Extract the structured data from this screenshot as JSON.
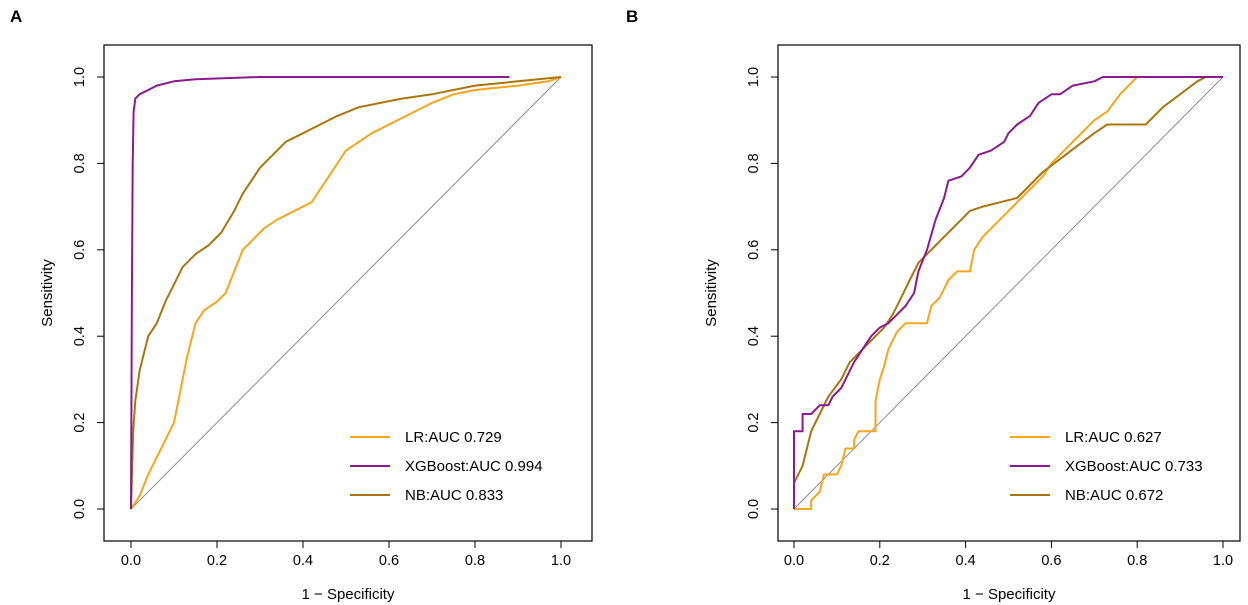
{
  "colors": {
    "LR": "#f7a51b",
    "XGBoost": "#8b1a8e",
    "NB": "#a8760d",
    "diagonal": "#8c8c8c"
  },
  "chart_data": [
    {
      "panel": "A",
      "type": "line",
      "title": "",
      "xlabel": "1 − Specificity",
      "ylabel": "Sensitivity",
      "xlim": [
        0,
        1
      ],
      "ylim": [
        0,
        1
      ],
      "x_ticks": [
        "0.0",
        "0.2",
        "0.4",
        "0.6",
        "0.8",
        "1.0"
      ],
      "y_ticks": [
        "0.0",
        "0.2",
        "0.4",
        "0.6",
        "0.8",
        "1.0"
      ],
      "grid": false,
      "legend_position": "bottom-right",
      "reference_line": [
        [
          0,
          0
        ],
        [
          1,
          1
        ]
      ],
      "series": [
        {
          "name": "LR",
          "legend": "LR:AUC 0.729",
          "color_key": "LR",
          "points": [
            [
              0,
              0
            ],
            [
              0.02,
              0.03
            ],
            [
              0.04,
              0.08
            ],
            [
              0.06,
              0.12
            ],
            [
              0.08,
              0.16
            ],
            [
              0.1,
              0.2
            ],
            [
              0.12,
              0.3
            ],
            [
              0.13,
              0.35
            ],
            [
              0.15,
              0.43
            ],
            [
              0.17,
              0.46
            ],
            [
              0.2,
              0.48
            ],
            [
              0.22,
              0.5
            ],
            [
              0.24,
              0.55
            ],
            [
              0.26,
              0.6
            ],
            [
              0.28,
              0.62
            ],
            [
              0.31,
              0.65
            ],
            [
              0.34,
              0.67
            ],
            [
              0.38,
              0.69
            ],
            [
              0.42,
              0.71
            ],
            [
              0.44,
              0.74
            ],
            [
              0.46,
              0.77
            ],
            [
              0.48,
              0.8
            ],
            [
              0.5,
              0.83
            ],
            [
              0.53,
              0.85
            ],
            [
              0.56,
              0.87
            ],
            [
              0.6,
              0.89
            ],
            [
              0.64,
              0.91
            ],
            [
              0.7,
              0.94
            ],
            [
              0.75,
              0.96
            ],
            [
              0.8,
              0.97
            ],
            [
              0.9,
              0.98
            ],
            [
              0.97,
              0.99
            ],
            [
              1,
              1
            ]
          ]
        },
        {
          "name": "XGBoost",
          "legend": "XGBoost:AUC 0.994",
          "color_key": "XGBoost",
          "points": [
            [
              0,
              0
            ],
            [
              0.002,
              0.5
            ],
            [
              0.004,
              0.8
            ],
            [
              0.006,
              0.92
            ],
            [
              0.01,
              0.95
            ],
            [
              0.02,
              0.96
            ],
            [
              0.04,
              0.97
            ],
            [
              0.06,
              0.98
            ],
            [
              0.1,
              0.99
            ],
            [
              0.15,
              0.995
            ],
            [
              0.3,
              1
            ],
            [
              0.88,
              1
            ]
          ]
        },
        {
          "name": "NB",
          "legend": "NB:AUC 0.833",
          "color_key": "NB",
          "points": [
            [
              0,
              0
            ],
            [
              0.005,
              0.18
            ],
            [
              0.01,
              0.25
            ],
            [
              0.02,
              0.32
            ],
            [
              0.03,
              0.36
            ],
            [
              0.04,
              0.4
            ],
            [
              0.06,
              0.43
            ],
            [
              0.08,
              0.48
            ],
            [
              0.1,
              0.52
            ],
            [
              0.12,
              0.56
            ],
            [
              0.15,
              0.59
            ],
            [
              0.18,
              0.61
            ],
            [
              0.21,
              0.64
            ],
            [
              0.24,
              0.69
            ],
            [
              0.26,
              0.73
            ],
            [
              0.28,
              0.76
            ],
            [
              0.3,
              0.79
            ],
            [
              0.33,
              0.82
            ],
            [
              0.36,
              0.85
            ],
            [
              0.4,
              0.87
            ],
            [
              0.44,
              0.89
            ],
            [
              0.48,
              0.91
            ],
            [
              0.53,
              0.93
            ],
            [
              0.58,
              0.94
            ],
            [
              0.63,
              0.95
            ],
            [
              0.7,
              0.96
            ],
            [
              0.8,
              0.98
            ],
            [
              0.9,
              0.99
            ],
            [
              1,
              1
            ]
          ]
        }
      ]
    },
    {
      "panel": "B",
      "type": "line",
      "title": "",
      "xlabel": "1 − Specificity",
      "ylabel": "Sensitivity",
      "xlim": [
        0,
        1
      ],
      "ylim": [
        0,
        1
      ],
      "x_ticks": [
        "0.0",
        "0.2",
        "0.4",
        "0.6",
        "0.8",
        "1.0"
      ],
      "y_ticks": [
        "0.0",
        "0.2",
        "0.4",
        "0.6",
        "0.8",
        "1.0"
      ],
      "grid": false,
      "legend_position": "bottom-right",
      "reference_line": [
        [
          0,
          0
        ],
        [
          1,
          1
        ]
      ],
      "series": [
        {
          "name": "LR",
          "legend": "LR:AUC 0.627",
          "color_key": "LR",
          "points": [
            [
              0,
              0
            ],
            [
              0.02,
              0
            ],
            [
              0.04,
              0
            ],
            [
              0.04,
              0.02
            ],
            [
              0.06,
              0.04
            ],
            [
              0.07,
              0.08
            ],
            [
              0.1,
              0.08
            ],
            [
              0.11,
              0.1
            ],
            [
              0.12,
              0.14
            ],
            [
              0.14,
              0.14
            ],
            [
              0.14,
              0.16
            ],
            [
              0.15,
              0.18
            ],
            [
              0.19,
              0.18
            ],
            [
              0.19,
              0.25
            ],
            [
              0.2,
              0.3
            ],
            [
              0.21,
              0.33
            ],
            [
              0.22,
              0.37
            ],
            [
              0.24,
              0.41
            ],
            [
              0.26,
              0.43
            ],
            [
              0.31,
              0.43
            ],
            [
              0.32,
              0.47
            ],
            [
              0.34,
              0.49
            ],
            [
              0.36,
              0.53
            ],
            [
              0.38,
              0.55
            ],
            [
              0.41,
              0.55
            ],
            [
              0.42,
              0.6
            ],
            [
              0.44,
              0.63
            ],
            [
              0.46,
              0.65
            ],
            [
              0.48,
              0.67
            ],
            [
              0.5,
              0.69
            ],
            [
              0.52,
              0.71
            ],
            [
              0.54,
              0.73
            ],
            [
              0.56,
              0.75
            ],
            [
              0.58,
              0.77
            ],
            [
              0.6,
              0.8
            ],
            [
              0.62,
              0.82
            ],
            [
              0.64,
              0.84
            ],
            [
              0.66,
              0.86
            ],
            [
              0.68,
              0.88
            ],
            [
              0.7,
              0.9
            ],
            [
              0.73,
              0.92
            ],
            [
              0.76,
              0.96
            ],
            [
              0.78,
              0.98
            ],
            [
              0.8,
              1
            ],
            [
              1,
              1
            ]
          ]
        },
        {
          "name": "XGBoost",
          "legend": "XGBoost:AUC 0.733",
          "color_key": "XGBoost",
          "points": [
            [
              0,
              0
            ],
            [
              0,
              0.18
            ],
            [
              0.02,
              0.18
            ],
            [
              0.02,
              0.22
            ],
            [
              0.04,
              0.22
            ],
            [
              0.06,
              0.24
            ],
            [
              0.08,
              0.24
            ],
            [
              0.09,
              0.26
            ],
            [
              0.11,
              0.28
            ],
            [
              0.12,
              0.3
            ],
            [
              0.14,
              0.34
            ],
            [
              0.16,
              0.37
            ],
            [
              0.18,
              0.4
            ],
            [
              0.2,
              0.42
            ],
            [
              0.22,
              0.43
            ],
            [
              0.24,
              0.45
            ],
            [
              0.26,
              0.47
            ],
            [
              0.28,
              0.5
            ],
            [
              0.29,
              0.55
            ],
            [
              0.31,
              0.6
            ],
            [
              0.33,
              0.67
            ],
            [
              0.35,
              0.72
            ],
            [
              0.36,
              0.76
            ],
            [
              0.39,
              0.77
            ],
            [
              0.41,
              0.79
            ],
            [
              0.43,
              0.82
            ],
            [
              0.46,
              0.83
            ],
            [
              0.49,
              0.85
            ],
            [
              0.5,
              0.87
            ],
            [
              0.52,
              0.89
            ],
            [
              0.55,
              0.91
            ],
            [
              0.57,
              0.94
            ],
            [
              0.6,
              0.96
            ],
            [
              0.62,
              0.96
            ],
            [
              0.65,
              0.98
            ],
            [
              0.7,
              0.99
            ],
            [
              0.72,
              1
            ],
            [
              1,
              1
            ]
          ]
        },
        {
          "name": "NB",
          "legend": "NB:AUC 0.672",
          "color_key": "NB",
          "points": [
            [
              0,
              0
            ],
            [
              0,
              0.06
            ],
            [
              0.02,
              0.1
            ],
            [
              0.03,
              0.14
            ],
            [
              0.04,
              0.18
            ],
            [
              0.06,
              0.22
            ],
            [
              0.08,
              0.26
            ],
            [
              0.11,
              0.3
            ],
            [
              0.13,
              0.34
            ],
            [
              0.15,
              0.36
            ],
            [
              0.17,
              0.38
            ],
            [
              0.19,
              0.4
            ],
            [
              0.21,
              0.42
            ],
            [
              0.23,
              0.45
            ],
            [
              0.25,
              0.49
            ],
            [
              0.27,
              0.53
            ],
            [
              0.29,
              0.57
            ],
            [
              0.31,
              0.59
            ],
            [
              0.33,
              0.61
            ],
            [
              0.35,
              0.63
            ],
            [
              0.38,
              0.66
            ],
            [
              0.41,
              0.69
            ],
            [
              0.44,
              0.7
            ],
            [
              0.48,
              0.71
            ],
            [
              0.52,
              0.72
            ],
            [
              0.55,
              0.75
            ],
            [
              0.58,
              0.78
            ],
            [
              0.62,
              0.81
            ],
            [
              0.66,
              0.84
            ],
            [
              0.7,
              0.87
            ],
            [
              0.73,
              0.89
            ],
            [
              0.76,
              0.89
            ],
            [
              0.82,
              0.89
            ],
            [
              0.86,
              0.93
            ],
            [
              0.9,
              0.96
            ],
            [
              0.94,
              0.99
            ],
            [
              0.96,
              1
            ],
            [
              1,
              1
            ]
          ]
        }
      ]
    }
  ]
}
